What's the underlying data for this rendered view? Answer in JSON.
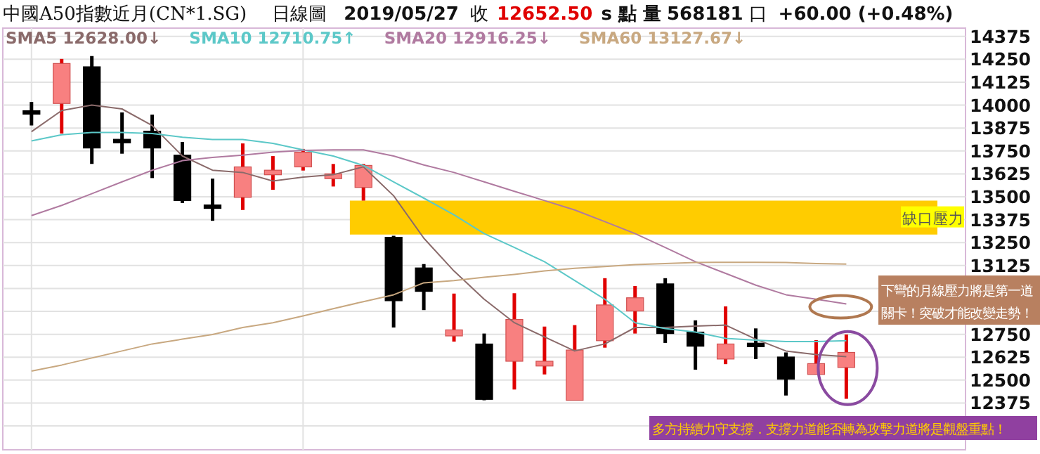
{
  "chart_data": {
    "type": "candlestick",
    "title": "中國A50指數近月(CN*1.SG)",
    "subtitle": "日線圖",
    "annotations": [
      "2019/05/27",
      "收",
      "12652.50",
      "s 點 量",
      "568181",
      "口",
      "+60.00 (+0.48%)",
      "下彎的月線壓力將是第一道關卡！突破才能改變走勢！",
      "多方持續力守支撐．支撐力道能否轉為攻擊力道將是觀盤重點！"
    ],
    "categories": [
      null,
      null,
      null,
      null,
      null,
      null,
      null,
      null,
      null,
      null,
      null,
      null,
      null,
      null,
      null,
      null,
      null,
      null,
      null,
      null,
      null,
      null,
      null,
      null,
      null,
      null,
      null,
      null
    ],
    "ohlc": [
      [
        13960,
        14017,
        13889,
        13960
      ],
      [
        14009,
        14252,
        13845,
        14227
      ],
      [
        14209,
        14268,
        13679,
        13766
      ],
      [
        13804,
        13960,
        13735,
        13804
      ],
      [
        13858,
        13948,
        13602,
        13766
      ],
      [
        13727,
        13799,
        13466,
        13479
      ],
      [
        13446,
        13599,
        13369,
        13446
      ],
      [
        13497,
        13791,
        13428,
        13663
      ],
      [
        13620,
        13722,
        13538,
        13645
      ],
      [
        13663,
        13761,
        13643,
        13743
      ],
      [
        13599,
        13679,
        13556,
        13625
      ],
      [
        13551,
        13679,
        13479,
        13671
      ],
      [
        13279,
        13287,
        12787,
        12933
      ],
      [
        13112,
        13133,
        12882,
        12984
      ],
      [
        12741,
        12972,
        12710,
        12774
      ],
      [
        12697,
        12754,
        12390,
        12395
      ],
      [
        12603,
        12974,
        12449,
        12831
      ],
      [
        12577,
        12792,
        12531,
        12603
      ],
      [
        12390,
        12800,
        12390,
        12664
      ],
      [
        12715,
        13056,
        12677,
        12910
      ],
      [
        12877,
        13013,
        12754,
        12949
      ],
      [
        13025,
        13056,
        12703,
        12754
      ],
      [
        12762,
        12826,
        12557,
        12685
      ],
      [
        12615,
        12902,
        12587,
        12697
      ],
      [
        12692,
        12782,
        12615,
        12692
      ],
      [
        12626,
        12651,
        12416,
        12505
      ],
      [
        12531,
        12718,
        12531,
        12590
      ],
      [
        12569,
        12749,
        12398,
        12651
      ]
    ],
    "series": [
      {
        "name": "SMA5 12628.00↓",
        "type": "line",
        "color": "#8a6a6a",
        "values": [
          13855,
          13971,
          14000,
          13979,
          13889,
          13722,
          13645,
          13633,
          13586,
          13607,
          13620,
          13663,
          13505,
          13274,
          13095,
          12941,
          12813,
          12736,
          12659,
          12697,
          12787,
          12787,
          12795,
          12800,
          12723,
          12659,
          12639,
          12628
        ]
      },
      {
        "name": "SMA10 12710.75↑",
        "type": "line",
        "color": "#5cc8c8",
        "values": [
          13804,
          13838,
          13850,
          13850,
          13845,
          13825,
          13812,
          13812,
          13791,
          13756,
          13722,
          13671,
          13581,
          13492,
          13402,
          13299,
          13223,
          13146,
          13043,
          12941,
          12813,
          12782,
          12762,
          12728,
          12718,
          12710,
          12710,
          12715
        ]
      },
      {
        "name": "SMA20 12916.25↓",
        "type": "line",
        "color": "#b07aa0",
        "values": [
          13397,
          13453,
          13517,
          13581,
          13645,
          13697,
          13715,
          13727,
          13743,
          13753,
          13756,
          13756,
          13722,
          13673,
          13633,
          13581,
          13530,
          13479,
          13428,
          13364,
          13299,
          13223,
          13146,
          13082,
          13018,
          12966,
          12941,
          12915
        ]
      },
      {
        "name": "SMA60 13127.67↓",
        "type": "line",
        "color": "#c8a880",
        "values": [
          12549,
          12582,
          12621,
          12659,
          12697,
          12723,
          12749,
          12787,
          12813,
          12851,
          12890,
          12928,
          12966,
          13031,
          13043,
          13061,
          13077,
          13095,
          13110,
          13120,
          13130,
          13136,
          13141,
          13143,
          13143,
          13141,
          13136,
          13133
        ]
      }
    ],
    "bands": [
      {
        "axis": "y",
        "from": 13294,
        "to": 13479,
        "label": "缺口壓力",
        "color": "#ffcc00"
      }
    ],
    "ylim": [
      12120,
      14420
    ],
    "yticks": [
      {
        "value": 12250,
        "label": null
      },
      12375,
      12500,
      12625,
      12750,
      {
        "value": 12875,
        "label": null
      },
      {
        "value": 13000,
        "label": null
      },
      13125,
      13250,
      13375,
      13500,
      13625,
      13750,
      13875,
      14000,
      14125,
      14250,
      14375
    ],
    "grid": "y",
    "legend": "top",
    "tick_labels": "y"
  }
}
